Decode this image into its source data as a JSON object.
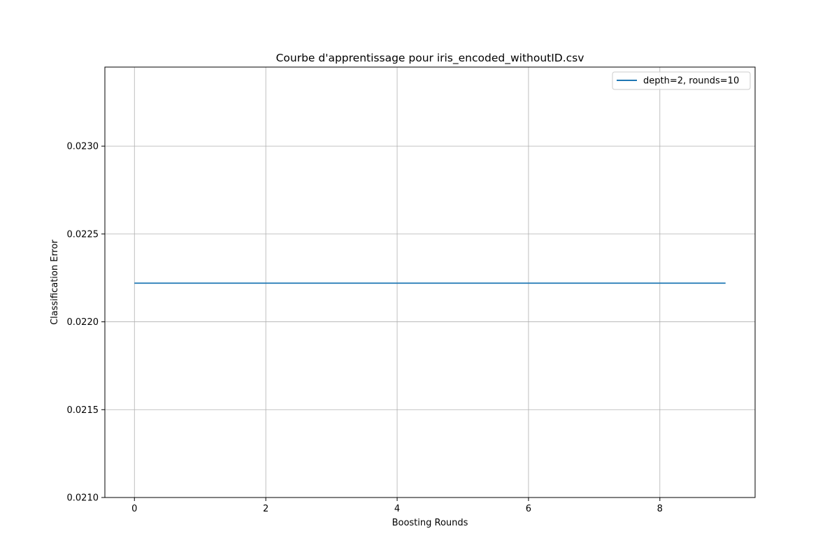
{
  "chart_data": {
    "type": "line",
    "title": "Courbe d'apprentissage pour iris_encoded_withoutID.csv",
    "xlabel": "Boosting Rounds",
    "ylabel": "Classification Error",
    "xlim": [
      -0.45,
      9.45
    ],
    "ylim": [
      0.021,
      0.02345
    ],
    "xticks": [
      0,
      2,
      4,
      6,
      8
    ],
    "xtick_labels": [
      "0",
      "2",
      "4",
      "6",
      "8"
    ],
    "yticks": [
      0.021,
      0.0215,
      0.022,
      0.0225,
      0.023
    ],
    "ytick_labels": [
      "0.0210",
      "0.0215",
      "0.0220",
      "0.0225",
      "0.0230"
    ],
    "grid": true,
    "legend_position": "top-right",
    "series": [
      {
        "name": "depth=2, rounds=10",
        "color": "#1f77b4",
        "x": [
          0,
          1,
          2,
          3,
          4,
          5,
          6,
          7,
          8,
          9
        ],
        "y": [
          0.02222,
          0.02222,
          0.02222,
          0.02222,
          0.02222,
          0.02222,
          0.02222,
          0.02222,
          0.02222,
          0.02222
        ]
      }
    ]
  }
}
